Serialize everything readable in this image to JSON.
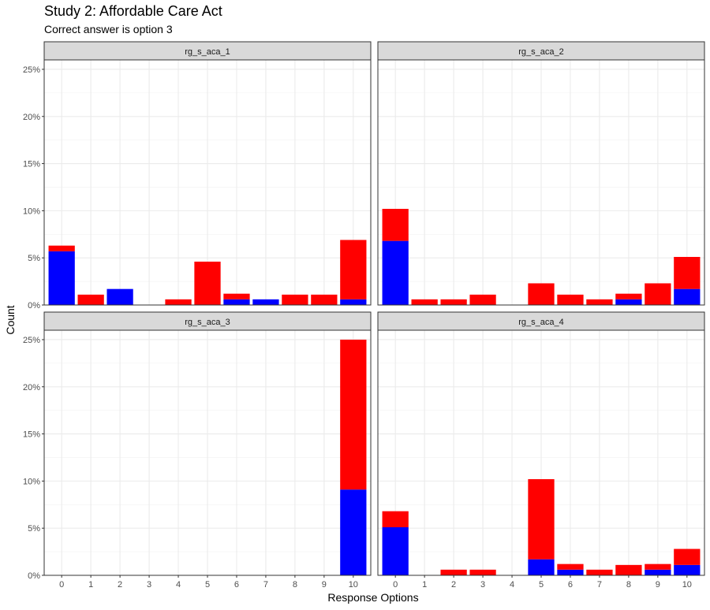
{
  "chart_data": {
    "type": "bar",
    "stacked": true,
    "facet": "wrap-2x2",
    "title": "Study 2: Affordable Care Act",
    "subtitle": "Correct answer is option 3",
    "xlabel": "Response Options",
    "ylabel": "Count",
    "ylim": [
      0,
      26
    ],
    "yticks": [
      "0%",
      "5%",
      "10%",
      "15%",
      "20%",
      "25%"
    ],
    "ytick_values": [
      0,
      5,
      10,
      15,
      20,
      25
    ],
    "categories": [
      "0",
      "1",
      "2",
      "3",
      "4",
      "5",
      "6",
      "7",
      "8",
      "9",
      "10"
    ],
    "grid": true,
    "legend": "none",
    "colors": {
      "blue": "#0000ff",
      "red": "#ff0000"
    },
    "panels": [
      {
        "name": "rg_s_aca_1",
        "series": [
          {
            "color": "#0000ff",
            "values": [
              5.7,
              0,
              1.7,
              0,
              0,
              0,
              0.6,
              0.6,
              0,
              0,
              0.6
            ]
          },
          {
            "color": "#ff0000",
            "values": [
              0.6,
              1.1,
              0,
              0,
              0.6,
              4.6,
              0.6,
              0,
              1.1,
              1.1,
              6.3
            ]
          }
        ]
      },
      {
        "name": "rg_s_aca_2",
        "series": [
          {
            "color": "#0000ff",
            "values": [
              6.8,
              0,
              0,
              0,
              0,
              0,
              0,
              0,
              0.6,
              0,
              1.7
            ]
          },
          {
            "color": "#ff0000",
            "values": [
              3.4,
              0.6,
              0.6,
              1.1,
              0,
              2.3,
              1.1,
              0.6,
              0.6,
              2.3,
              3.4
            ]
          }
        ]
      },
      {
        "name": "rg_s_aca_3",
        "series": [
          {
            "color": "#0000ff",
            "values": [
              0,
              0,
              0,
              0,
              0,
              0,
              0,
              0,
              0,
              0,
              9.1
            ]
          },
          {
            "color": "#ff0000",
            "values": [
              0,
              0,
              0,
              0,
              0,
              0,
              0,
              0,
              0,
              0,
              15.9
            ]
          }
        ]
      },
      {
        "name": "rg_s_aca_4",
        "series": [
          {
            "color": "#0000ff",
            "values": [
              5.1,
              0,
              0,
              0,
              0,
              1.7,
              0.6,
              0,
              0,
              0.6,
              1.1
            ]
          },
          {
            "color": "#ff0000",
            "values": [
              1.7,
              0,
              0.6,
              0.6,
              0,
              8.5,
              0.6,
              0.6,
              1.1,
              0.6,
              1.7
            ]
          }
        ]
      }
    ]
  }
}
